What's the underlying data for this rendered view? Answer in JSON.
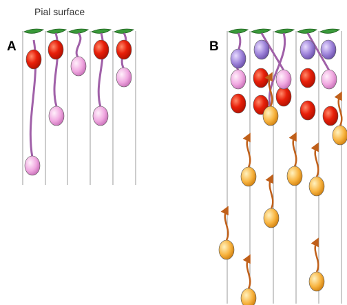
{
  "header": {
    "title": "Pial surface"
  },
  "panels": [
    {
      "label": "A"
    },
    {
      "label": "B"
    }
  ]
}
